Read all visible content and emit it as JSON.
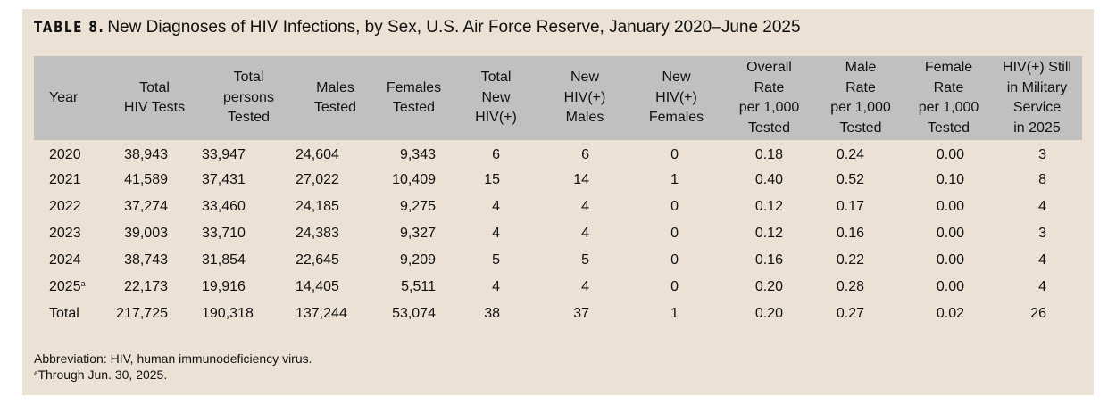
{
  "title": {
    "label": "TABLE 8.",
    "text": "New Diagnoses of HIV Infections, by Sex, U.S. Air Force Reserve, January 2020–June 2025"
  },
  "headers": [
    [
      "Year"
    ],
    [
      "Total",
      "HIV Tests"
    ],
    [
      "Total",
      "persons",
      "Tested"
    ],
    [
      "Males",
      "Tested"
    ],
    [
      "Females",
      "Tested"
    ],
    [
      "Total",
      "New",
      "HIV(+)"
    ],
    [
      "New",
      "HIV(+)",
      "Males"
    ],
    [
      "New",
      "HIV(+)",
      "Females"
    ],
    [
      "Overall",
      "Rate",
      "per 1,000",
      "Tested"
    ],
    [
      "Male",
      "Rate",
      "per 1,000",
      "Tested"
    ],
    [
      "Female",
      "Rate",
      "per 1,000",
      "Tested"
    ],
    [
      "HIV(+) Still",
      "in Military",
      "Service",
      "in 2025"
    ]
  ],
  "rows": [
    {
      "year": "2020",
      "sup": "",
      "cells": [
        "38,943",
        "33,947",
        "24,604",
        "9,343",
        "6",
        "6",
        "0",
        "0.18",
        "0.24",
        "0.00",
        "3"
      ]
    },
    {
      "year": "2021",
      "sup": "",
      "cells": [
        "41,589",
        "37,431",
        "27,022",
        "10,409",
        "15",
        "14",
        "1",
        "0.40",
        "0.52",
        "0.10",
        "8"
      ]
    },
    {
      "year": "2022",
      "sup": "",
      "cells": [
        "37,274",
        "33,460",
        "24,185",
        "9,275",
        "4",
        "4",
        "0",
        "0.12",
        "0.17",
        "0.00",
        "4"
      ]
    },
    {
      "year": "2023",
      "sup": "",
      "cells": [
        "39,003",
        "33,710",
        "24,383",
        "9,327",
        "4",
        "4",
        "0",
        "0.12",
        "0.16",
        "0.00",
        "3"
      ]
    },
    {
      "year": "2024",
      "sup": "",
      "cells": [
        "38,743",
        "31,854",
        "22,645",
        "9,209",
        "5",
        "5",
        "0",
        "0.16",
        "0.22",
        "0.00",
        "4"
      ]
    },
    {
      "year": "2025",
      "sup": "a",
      "cells": [
        "22,173",
        "19,916",
        "14,405",
        "5,511",
        "4",
        "4",
        "0",
        "0.20",
        "0.28",
        "0.00",
        "4"
      ]
    },
    {
      "year": "Total",
      "sup": "",
      "cells": [
        "217,725",
        "190,318",
        "137,244",
        "53,074",
        "38",
        "37",
        "1",
        "0.20",
        "0.27",
        "0.02",
        "26"
      ]
    }
  ],
  "footnotes": {
    "abbreviation": "Abbreviation: HIV, human immunodeficiency virus.",
    "a_mark": "a",
    "a_text": "Through Jun. 30, 2025."
  },
  "colors": {
    "panel": "#ebe1d5",
    "header": "#c0c0c0"
  }
}
